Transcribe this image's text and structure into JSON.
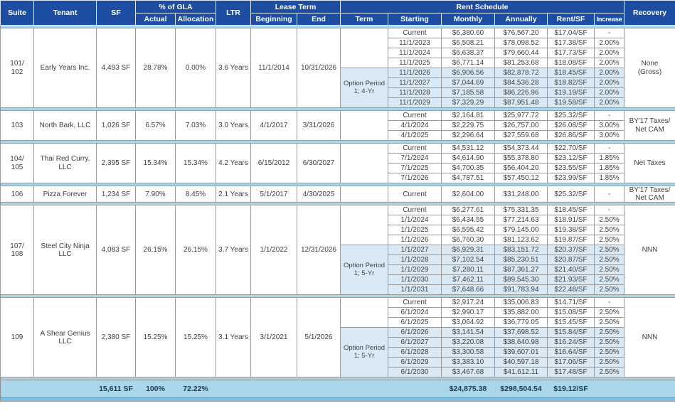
{
  "colors": {
    "header_blue": "#1e4ea3",
    "option_highlight": "#d9eaf6",
    "footer_band": "#a9d6eb",
    "bottom_bar": "#7cbfe5",
    "border_gray": "#8f8f8f",
    "body_text": "#3f3f3f"
  },
  "header": {
    "suite": "Suite",
    "tenant": "Tenant",
    "sf": "SF",
    "gla_group": "% of GLA",
    "actual": "Actual",
    "allocation": "Allocation",
    "ltr": "LTR",
    "lease_term_group": "Lease Term",
    "beginning": "Beginning",
    "end": "End",
    "rent_schedule_group": "Rent Schedule",
    "term": "Term",
    "starting": "Starting",
    "monthly": "Monthly",
    "annually": "Annually",
    "rent_sf": "Rent/SF",
    "increase": "Increase",
    "recovery": "Recovery"
  },
  "tenants": [
    {
      "suite": "101/\n102",
      "tenant": "Early Years Inc.",
      "sf": "4,493 SF",
      "actual": "28.78%",
      "allocation": "0.00%",
      "ltr": "3.6 Years",
      "beginning": "11/1/2014",
      "end": "10/31/2026",
      "recovery": "None\n(Gross)",
      "option_label": "Option Period\n1; 4-Yr",
      "schedule": [
        {
          "start": "Current",
          "monthly": "$6,380.60",
          "annually": "$76,567.20",
          "rent_sf": "$17.04/SF",
          "increase": "-",
          "option": false
        },
        {
          "start": "11/1/2023",
          "monthly": "$6,508.21",
          "annually": "$78,098.52",
          "rent_sf": "$17.38/SF",
          "increase": "2.00%",
          "option": false
        },
        {
          "start": "11/1/2024",
          "monthly": "$6,638.37",
          "annually": "$79,660.44",
          "rent_sf": "$17.73/SF",
          "increase": "2.00%",
          "option": false
        },
        {
          "start": "11/1/2025",
          "monthly": "$6,771.14",
          "annually": "$81,253.68",
          "rent_sf": "$18.08/SF",
          "increase": "2.00%",
          "option": false
        },
        {
          "start": "11/1/2026",
          "monthly": "$6,906.56",
          "annually": "$82,878.72",
          "rent_sf": "$18.45/SF",
          "increase": "2.00%",
          "option": true
        },
        {
          "start": "11/1/2027",
          "monthly": "$7,044.69",
          "annually": "$84,536.28",
          "rent_sf": "$18.82/SF",
          "increase": "2.00%",
          "option": true
        },
        {
          "start": "11/1/2028",
          "monthly": "$7,185.58",
          "annually": "$86,226.96",
          "rent_sf": "$19.19/SF",
          "increase": "2.00%",
          "option": true
        },
        {
          "start": "11/1/2029",
          "monthly": "$7,329.29",
          "annually": "$87,951.48",
          "rent_sf": "$19.58/SF",
          "increase": "2.00%",
          "option": true
        }
      ]
    },
    {
      "suite": "103",
      "tenant": "North Bark, LLC",
      "sf": "1,026 SF",
      "actual": "6.57%",
      "allocation": "7.03%",
      "ltr": "3.0 Years",
      "beginning": "4/1/2017",
      "end": "3/31/2026",
      "recovery": "BY'17 Taxes/\nNet CAM",
      "option_label": "",
      "schedule": [
        {
          "start": "Current",
          "monthly": "$2,164.81",
          "annually": "$25,977.72",
          "rent_sf": "$25.32/SF",
          "increase": "-",
          "option": false
        },
        {
          "start": "4/1/2024",
          "monthly": "$2,229.75",
          "annually": "$26,757.00",
          "rent_sf": "$26.08/SF",
          "increase": "3.00%",
          "option": false
        },
        {
          "start": "4/1/2025",
          "monthly": "$2,296.64",
          "annually": "$27,559.68",
          "rent_sf": "$26.86/SF",
          "increase": "3.00%",
          "option": false
        }
      ]
    },
    {
      "suite": "104/\n105",
      "tenant": "Thai Red Curry, LLC",
      "sf": "2,395 SF",
      "actual": "15.34%",
      "allocation": "15.34%",
      "ltr": "4.2 Years",
      "beginning": "6/15/2012",
      "end": "6/30/2027",
      "recovery": "Net Taxes",
      "option_label": "",
      "schedule": [
        {
          "start": "Current",
          "monthly": "$4,531.12",
          "annually": "$54,373.44",
          "rent_sf": "$22.70/SF",
          "increase": "-",
          "option": false
        },
        {
          "start": "7/1/2024",
          "monthly": "$4,614.90",
          "annually": "$55,378.80",
          "rent_sf": "$23.12/SF",
          "increase": "1.85%",
          "option": false
        },
        {
          "start": "7/1/2025",
          "monthly": "$4,700.35",
          "annually": "$56,404.20",
          "rent_sf": "$23.55/SF",
          "increase": "1.85%",
          "option": false
        },
        {
          "start": "7/1/2026",
          "monthly": "$4,787.51",
          "annually": "$57,450.12",
          "rent_sf": "$23.99/SF",
          "increase": "1.85%",
          "option": false
        }
      ]
    },
    {
      "suite": "106",
      "tenant": "Pizza Forever",
      "sf": "1,234 SF",
      "actual": "7.90%",
      "allocation": "8.45%",
      "ltr": "2.1 Years",
      "beginning": "5/1/2017",
      "end": "4/30/2025",
      "recovery": "BY'17 Taxes/\nNet CAM",
      "option_label": "",
      "schedule": [
        {
          "start": "Current",
          "monthly": "$2,604.00",
          "annually": "$31,248.00",
          "rent_sf": "$25.32/SF",
          "increase": "-",
          "option": false
        }
      ]
    },
    {
      "suite": "107/\n108",
      "tenant": "Steel City Ninja LLC",
      "sf": "4,083 SF",
      "actual": "26.15%",
      "allocation": "26.15%",
      "ltr": "3.7 Years",
      "beginning": "1/1/2022",
      "end": "12/31/2026",
      "recovery": "NNN",
      "option_label": "Option Period\n1; 5-Yr",
      "schedule": [
        {
          "start": "Current",
          "monthly": "$6,277.61",
          "annually": "$75,331.35",
          "rent_sf": "$18.45/SF",
          "increase": "-",
          "option": false
        },
        {
          "start": "1/1/2024",
          "monthly": "$6,434.55",
          "annually": "$77,214.63",
          "rent_sf": "$18.91/SF",
          "increase": "2.50%",
          "option": false
        },
        {
          "start": "1/1/2025",
          "monthly": "$6,595.42",
          "annually": "$79,145.00",
          "rent_sf": "$19.38/SF",
          "increase": "2.50%",
          "option": false
        },
        {
          "start": "1/1/2026",
          "monthly": "$6,760.30",
          "annually": "$81,123.62",
          "rent_sf": "$19.87/SF",
          "increase": "2.50%",
          "option": false
        },
        {
          "start": "1/1/2027",
          "monthly": "$6,929.31",
          "annually": "$83,151.72",
          "rent_sf": "$20.37/SF",
          "increase": "2.50%",
          "option": true
        },
        {
          "start": "1/1/2028",
          "monthly": "$7,102.54",
          "annually": "$85,230.51",
          "rent_sf": "$20.87/SF",
          "increase": "2.50%",
          "option": true
        },
        {
          "start": "1/1/2029",
          "monthly": "$7,280.11",
          "annually": "$87,361.27",
          "rent_sf": "$21.40/SF",
          "increase": "2.50%",
          "option": true
        },
        {
          "start": "1/1/2030",
          "monthly": "$7,462.11",
          "annually": "$89,545.30",
          "rent_sf": "$21.93/SF",
          "increase": "2.50%",
          "option": true
        },
        {
          "start": "1/1/2031",
          "monthly": "$7,648.66",
          "annually": "$91,783.94",
          "rent_sf": "$22.48/SF",
          "increase": "2.50%",
          "option": true
        }
      ]
    },
    {
      "suite": "109",
      "tenant": "A Shear Genius LLC",
      "sf": "2,380 SF",
      "actual": "15.25%",
      "allocation": "15.25%",
      "ltr": "3.1 Years",
      "beginning": "3/1/2021",
      "end": "5/1/2026",
      "recovery": "NNN",
      "option_label": "Option Period\n1; 5-Yr",
      "schedule": [
        {
          "start": "Current",
          "monthly": "$2,917.24",
          "annually": "$35,006.83",
          "rent_sf": "$14.71/SF",
          "increase": "-",
          "option": false
        },
        {
          "start": "6/1/2024",
          "monthly": "$2,990.17",
          "annually": "$35,882.00",
          "rent_sf": "$15.08/SF",
          "increase": "2.50%",
          "option": false
        },
        {
          "start": "6/1/2025",
          "monthly": "$3,064.92",
          "annually": "$36,779.05",
          "rent_sf": "$15.45/SF",
          "increase": "2.50%",
          "option": false
        },
        {
          "start": "6/1/2026",
          "monthly": "$3,141.54",
          "annually": "$37,698.52",
          "rent_sf": "$15.84/SF",
          "increase": "2.50%",
          "option": true
        },
        {
          "start": "6/1/2027",
          "monthly": "$3,220.08",
          "annually": "$38,640.98",
          "rent_sf": "$16.24/SF",
          "increase": "2.50%",
          "option": true
        },
        {
          "start": "6/1/2028",
          "monthly": "$3,300.58",
          "annually": "$39,607.01",
          "rent_sf": "$16.64/SF",
          "increase": "2.50%",
          "option": true
        },
        {
          "start": "6/1/2029",
          "monthly": "$3,383.10",
          "annually": "$40,597.18",
          "rent_sf": "$17.06/SF",
          "increase": "2.50%",
          "option": true
        },
        {
          "start": "6/1/2030",
          "monthly": "$3,467.68",
          "annually": "$41,612.11",
          "rent_sf": "$17.48/SF",
          "increase": "2.50%",
          "option": true
        }
      ]
    }
  ],
  "totals": {
    "sf": "15,611 SF",
    "actual": "100%",
    "allocation": "72.22%",
    "monthly": "$24,875.38",
    "annually": "$298,504.54",
    "rent_sf": "$19.12/SF"
  }
}
